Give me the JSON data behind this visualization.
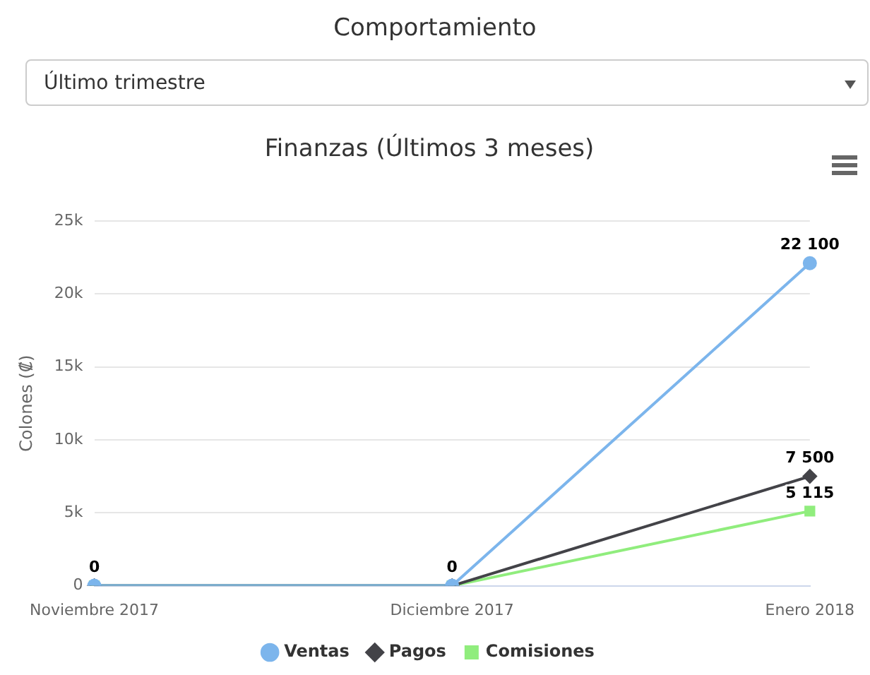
{
  "chart_data": {
    "type": "line",
    "title": "Finanzas (Últimos 3 meses)",
    "ylabel": "Colones (₡)",
    "annotations": [
      "Comportamiento",
      "Último trimestre"
    ],
    "categories": [
      "Noviembre 2017",
      "Diciembre 2017",
      "Enero 2018"
    ],
    "series": [
      {
        "name": "Ventas",
        "color": "#7cb5ec",
        "marker": "circle",
        "values": [
          0,
          0,
          22100
        ],
        "value_labels": [
          "0",
          "0",
          "22 100"
        ]
      },
      {
        "name": "Pagos",
        "color": "#434348",
        "marker": "diamond",
        "values": [
          0,
          0,
          7500
        ],
        "value_labels": [
          null,
          null,
          "7 500"
        ]
      },
      {
        "name": "Comisiones",
        "color": "#90ed7d",
        "marker": "square",
        "values": [
          0,
          0,
          5115
        ],
        "value_labels": [
          null,
          null,
          "5 115"
        ]
      }
    ],
    "ylim": [
      0,
      25000
    ],
    "yticks": [
      {
        "value": 0,
        "label": "0"
      },
      {
        "value": 5000,
        "label": "5k"
      },
      {
        "value": 10000,
        "label": "10k"
      },
      {
        "value": 15000,
        "label": "15k"
      },
      {
        "value": 20000,
        "label": "20k"
      },
      {
        "value": 25000,
        "label": "25k"
      }
    ],
    "grid": "y",
    "legend": "bottom"
  }
}
